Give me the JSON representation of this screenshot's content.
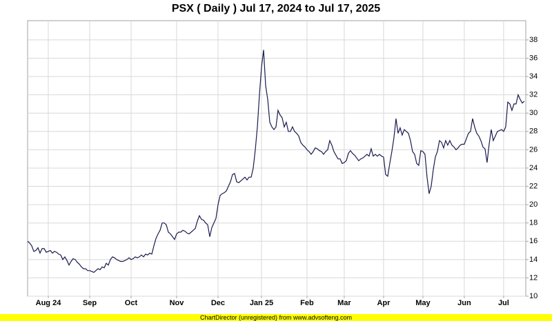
{
  "chart_data": {
    "type": "line",
    "title": "PSX ( Daily ) Jul 17, 2024 to Jul 17, 2025",
    "footer": "ChartDirector (unregistered) from www.advsofteng.com",
    "color": "#1a1a4e",
    "grid": true,
    "ylim": [
      10,
      40.1
    ],
    "yticks": [
      10,
      12,
      14,
      16,
      18,
      20,
      22,
      24,
      26,
      28,
      30,
      32,
      34,
      36,
      38
    ],
    "xlim": [
      0,
      240.7
    ],
    "xticks": [
      {
        "value": 10,
        "label": "Aug 24"
      },
      {
        "value": 30,
        "label": "Sep"
      },
      {
        "value": 50,
        "label": "Oct"
      },
      {
        "value": 72,
        "label": "Nov"
      },
      {
        "value": 92,
        "label": "Dec"
      },
      {
        "value": 113,
        "label": "Jan 25"
      },
      {
        "value": 135,
        "label": "Feb"
      },
      {
        "value": 153,
        "label": "Mar"
      },
      {
        "value": 172,
        "label": "Apr"
      },
      {
        "value": 191,
        "label": "May"
      },
      {
        "value": 211,
        "label": "Jun"
      },
      {
        "value": 230,
        "label": "Jul"
      }
    ],
    "values": [
      16.0,
      15.8,
      15.5,
      14.9,
      15.0,
      15.3,
      14.7,
      15.2,
      15.2,
      14.8,
      14.9,
      15.0,
      14.7,
      14.9,
      14.8,
      14.6,
      14.5,
      14.0,
      14.3,
      13.9,
      13.4,
      13.8,
      14.1,
      14.0,
      13.7,
      13.5,
      13.2,
      13.0,
      13.0,
      12.8,
      12.8,
      12.7,
      12.6,
      12.8,
      13.0,
      12.9,
      13.2,
      13.1,
      13.6,
      13.4,
      14.0,
      14.3,
      14.2,
      14.0,
      13.9,
      13.8,
      13.8,
      13.9,
      14.0,
      14.2,
      14.0,
      14.1,
      14.3,
      14.2,
      14.3,
      14.5,
      14.3,
      14.6,
      14.5,
      14.7,
      14.6,
      15.5,
      16.3,
      16.8,
      17.2,
      18.0,
      18.0,
      17.8,
      17.0,
      16.8,
      16.5,
      16.2,
      16.8,
      17.0,
      17.0,
      17.2,
      17.1,
      16.9,
      16.8,
      17.0,
      17.2,
      17.4,
      18.2,
      18.8,
      18.4,
      18.3,
      18.0,
      17.8,
      16.5,
      17.5,
      18.0,
      18.5,
      20.0,
      21.0,
      21.2,
      21.3,
      21.5,
      22.0,
      22.5,
      23.3,
      23.4,
      22.5,
      22.4,
      22.6,
      22.8,
      23.0,
      22.7,
      23.0,
      23.0,
      24.0,
      26.0,
      28.5,
      32.0,
      35.0,
      36.9,
      33.0,
      31.5,
      29.0,
      28.5,
      28.2,
      28.5,
      30.3,
      29.8,
      29.5,
      28.5,
      29.0,
      28.0,
      28.0,
      28.5,
      28.0,
      27.8,
      27.5,
      26.8,
      26.5,
      26.3,
      26.0,
      25.8,
      25.5,
      25.8,
      26.2,
      26.1,
      25.9,
      25.8,
      25.5,
      25.8,
      26.0,
      27.0,
      26.5,
      25.8,
      25.4,
      25.0,
      25.0,
      24.5,
      24.6,
      24.8,
      25.6,
      25.9,
      25.6,
      25.4,
      25.1,
      24.8,
      25.0,
      25.1,
      25.3,
      25.5,
      25.3,
      26.1,
      25.3,
      25.5,
      25.3,
      25.5,
      25.3,
      25.2,
      23.3,
      23.1,
      24.5,
      25.8,
      27.3,
      29.4,
      27.8,
      28.4,
      27.6,
      28.2,
      28.0,
      27.8,
      27.0,
      25.8,
      25.5,
      24.5,
      24.3,
      25.9,
      25.8,
      25.5,
      23.0,
      21.2,
      22.0,
      23.8,
      25.2,
      25.8,
      27.0,
      26.8,
      26.2,
      27.0,
      26.5,
      27.0,
      26.5,
      26.3,
      26.0,
      26.2,
      26.5,
      26.6,
      26.6,
      27.2,
      27.8,
      28.0,
      29.4,
      28.5,
      27.8,
      27.5,
      27.0,
      26.3,
      26.1,
      24.6,
      26.6,
      28.2,
      27.0,
      27.5,
      28.0,
      28.1,
      28.2,
      28.0,
      28.5,
      31.2,
      31.0,
      30.3,
      31.0,
      31.0,
      32.0,
      31.5,
      31.1,
      31.3
    ]
  }
}
